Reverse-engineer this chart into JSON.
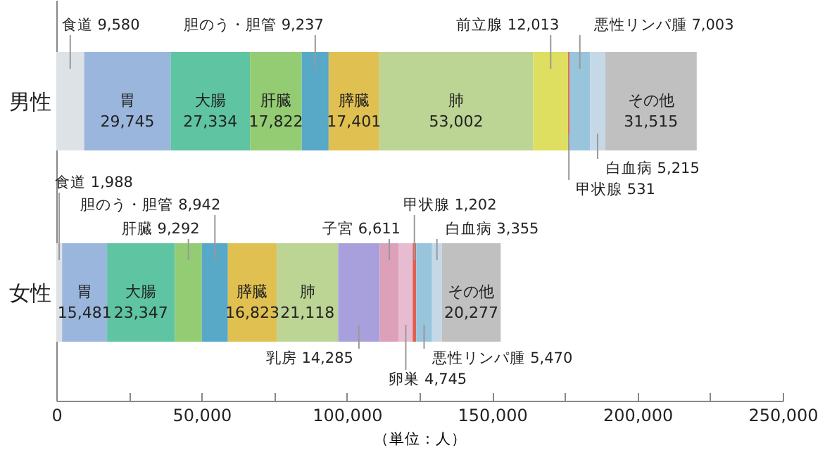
{
  "chart_data": {
    "type": "bar",
    "orientation": "horizontal",
    "stacked": true,
    "categories": [
      "男性",
      "女性"
    ],
    "xlabel": "（単位：人）",
    "xlim": [
      0,
      250000
    ],
    "xticks": [
      {
        "value": 0,
        "label": "0"
      },
      {
        "value": 25000,
        "label": null
      },
      {
        "value": 50000,
        "label": "50,000"
      },
      {
        "value": 75000,
        "label": null
      },
      {
        "value": 100000,
        "label": "100,000"
      },
      {
        "value": 125000,
        "label": null
      },
      {
        "value": 150000,
        "label": "150,000"
      },
      {
        "value": 175000,
        "label": null
      },
      {
        "value": 200000,
        "label": "200,000"
      },
      {
        "value": 225000,
        "label": null
      },
      {
        "value": 250000,
        "label": "250,000"
      }
    ],
    "series": [
      {
        "name": "食道",
        "color": "#dde2e6",
        "values": [
          9580,
          1988
        ],
        "value_labels": [
          "9,580",
          "1,988"
        ]
      },
      {
        "name": "胃",
        "color": "#9ab6dc",
        "values": [
          29745,
          15481
        ],
        "value_labels": [
          "29,745",
          "15,481"
        ]
      },
      {
        "name": "大腸",
        "color": "#5ec4a2",
        "values": [
          27334,
          23347
        ],
        "value_labels": [
          "27,334",
          "23,347"
        ]
      },
      {
        "name": "肝臓",
        "color": "#94cc74",
        "values": [
          17822,
          9292
        ],
        "value_labels": [
          "17,822",
          "9,292"
        ]
      },
      {
        "name": "胆のう・胆管",
        "color": "#58a8c8",
        "values": [
          9237,
          8942
        ],
        "value_labels": [
          "9,237",
          "8,942"
        ]
      },
      {
        "name": "膵臓",
        "color": "#e0c050",
        "values": [
          17401,
          16823
        ],
        "value_labels": [
          "17,401",
          "16,823"
        ]
      },
      {
        "name": "肺",
        "color": "#bcd494",
        "values": [
          53002,
          21118
        ],
        "value_labels": [
          "53,002",
          "21,118"
        ]
      },
      {
        "name": "前立腺",
        "color": "#dede60",
        "values": [
          12013,
          null
        ],
        "value_labels": [
          "12,013",
          null
        ]
      },
      {
        "name": "乳房",
        "color": "#a8a0dc",
        "values": [
          null,
          14285
        ],
        "value_labels": [
          null,
          "14,285"
        ]
      },
      {
        "name": "子宮",
        "color": "#dca0b8",
        "values": [
          null,
          6611
        ],
        "value_labels": [
          null,
          "6,611"
        ]
      },
      {
        "name": "卵巣",
        "color": "#e8bcd0",
        "values": [
          null,
          4745
        ],
        "value_labels": [
          null,
          "4,745"
        ]
      },
      {
        "name": "甲状腺",
        "color": "#e06050",
        "values": [
          531,
          1202
        ],
        "value_labels": [
          "531",
          "1,202"
        ]
      },
      {
        "name": "悪性リンパ腫",
        "color": "#98c4dc",
        "values": [
          7003,
          5470
        ],
        "value_labels": [
          "7,003",
          "5,470"
        ]
      },
      {
        "name": "白血病",
        "color": "#c4d8e8",
        "values": [
          5215,
          3355
        ],
        "value_labels": [
          "5,215",
          "3,355"
        ]
      },
      {
        "name": "その他",
        "color": "#c0c0c0",
        "values": [
          31515,
          20277
        ],
        "value_labels": [
          "31,515",
          "20,277"
        ]
      }
    ]
  }
}
